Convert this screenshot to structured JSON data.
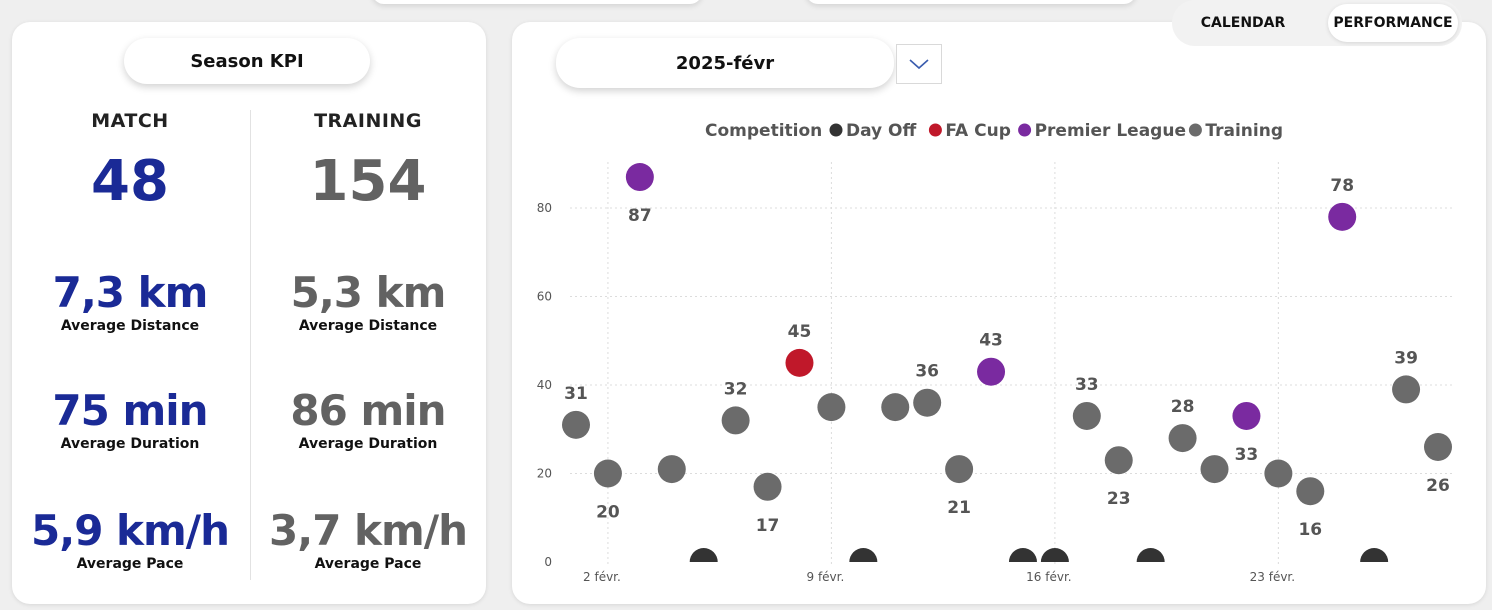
{
  "kpi": {
    "title": "Season KPI",
    "match": {
      "header": "MATCH",
      "count": "48",
      "distance": "7,3 km",
      "distance_label": "Average Distance",
      "duration": "75 min",
      "duration_label": "Average Duration",
      "pace": "5,9 km/h",
      "pace_label": "Average Pace"
    },
    "training": {
      "header": "TRAINING",
      "count": "154",
      "distance": "5,3 km",
      "distance_label": "Average Distance",
      "duration": "86 min",
      "duration_label": "Average Duration",
      "pace": "3,7 km/h",
      "pace_label": "Average Pace"
    }
  },
  "nav": {
    "calendar": "CALENDAR",
    "performance": "PERFORMANCE"
  },
  "filter": {
    "month": "2025-févr"
  },
  "colors": {
    "match_blue": "#1a2a96",
    "training_gray": "#626262",
    "day_off": "#333333",
    "fa_cup": "#c0182a",
    "premier_league": "#7a2aa0",
    "training": "#6b6b6b"
  },
  "chart_data": {
    "type": "scatter",
    "legend_title": "Competition",
    "legend_position": "top",
    "categories": [
      {
        "name": "Day Off",
        "color": "#333333"
      },
      {
        "name": "FA Cup",
        "color": "#c0182a"
      },
      {
        "name": "Premier League",
        "color": "#7a2aa0"
      },
      {
        "name": "Training",
        "color": "#6b6b6b"
      }
    ],
    "x_ticks": [
      {
        "day": 2,
        "label": "2 févr."
      },
      {
        "day": 9,
        "label": "9 févr."
      },
      {
        "day": 16,
        "label": "16 févr."
      },
      {
        "day": 23,
        "label": "23 févr."
      }
    ],
    "y_ticks": [
      0,
      20,
      40,
      60,
      80
    ],
    "xlim": [
      1,
      28
    ],
    "ylim": [
      0,
      90
    ],
    "grid": true,
    "points": [
      {
        "day": 1,
        "y": 31,
        "cat": "Training",
        "label": "31",
        "pos": "above"
      },
      {
        "day": 2,
        "y": 20,
        "cat": "Training",
        "label": "20",
        "pos": "below"
      },
      {
        "day": 3,
        "y": 87,
        "cat": "Premier League",
        "label": "87",
        "pos": "below"
      },
      {
        "day": 4,
        "y": 21,
        "cat": "Training",
        "label": "",
        "pos": "none"
      },
      {
        "day": 5,
        "y": 0,
        "cat": "Day Off",
        "label": "",
        "pos": "none"
      },
      {
        "day": 6,
        "y": 32,
        "cat": "Training",
        "label": "32",
        "pos": "above"
      },
      {
        "day": 7,
        "y": 17,
        "cat": "Training",
        "label": "17",
        "pos": "below"
      },
      {
        "day": 8,
        "y": 45,
        "cat": "FA Cup",
        "label": "45",
        "pos": "above"
      },
      {
        "day": 9,
        "y": 35,
        "cat": "Training",
        "label": "",
        "pos": "none"
      },
      {
        "day": 10,
        "y": 0,
        "cat": "Day Off",
        "label": "",
        "pos": "none"
      },
      {
        "day": 11,
        "y": 35,
        "cat": "Training",
        "label": "",
        "pos": "none"
      },
      {
        "day": 12,
        "y": 36,
        "cat": "Training",
        "label": "36",
        "pos": "above"
      },
      {
        "day": 13,
        "y": 21,
        "cat": "Training",
        "label": "21",
        "pos": "below"
      },
      {
        "day": 14,
        "y": 43,
        "cat": "Premier League",
        "label": "43",
        "pos": "above"
      },
      {
        "day": 15,
        "y": 0,
        "cat": "Day Off",
        "label": "",
        "pos": "none"
      },
      {
        "day": 16,
        "y": 0,
        "cat": "Day Off",
        "label": "",
        "pos": "none"
      },
      {
        "day": 17,
        "y": 33,
        "cat": "Training",
        "label": "33",
        "pos": "above"
      },
      {
        "day": 18,
        "y": 23,
        "cat": "Training",
        "label": "23",
        "pos": "below"
      },
      {
        "day": 19,
        "y": 0,
        "cat": "Day Off",
        "label": "",
        "pos": "none"
      },
      {
        "day": 20,
        "y": 28,
        "cat": "Training",
        "label": "28",
        "pos": "above"
      },
      {
        "day": 21,
        "y": 21,
        "cat": "Training",
        "label": "",
        "pos": "none"
      },
      {
        "day": 22,
        "y": 33,
        "cat": "Premier League",
        "label": "33",
        "pos": "below"
      },
      {
        "day": 23,
        "y": 20,
        "cat": "Training",
        "label": "",
        "pos": "none"
      },
      {
        "day": 24,
        "y": 16,
        "cat": "Training",
        "label": "16",
        "pos": "below"
      },
      {
        "day": 25,
        "y": 78,
        "cat": "Premier League",
        "label": "78",
        "pos": "above"
      },
      {
        "day": 26,
        "y": 0,
        "cat": "Day Off",
        "label": "",
        "pos": "none"
      },
      {
        "day": 27,
        "y": 39,
        "cat": "Training",
        "label": "39",
        "pos": "above"
      },
      {
        "day": 28,
        "y": 26,
        "cat": "Training",
        "label": "26",
        "pos": "below"
      }
    ]
  }
}
